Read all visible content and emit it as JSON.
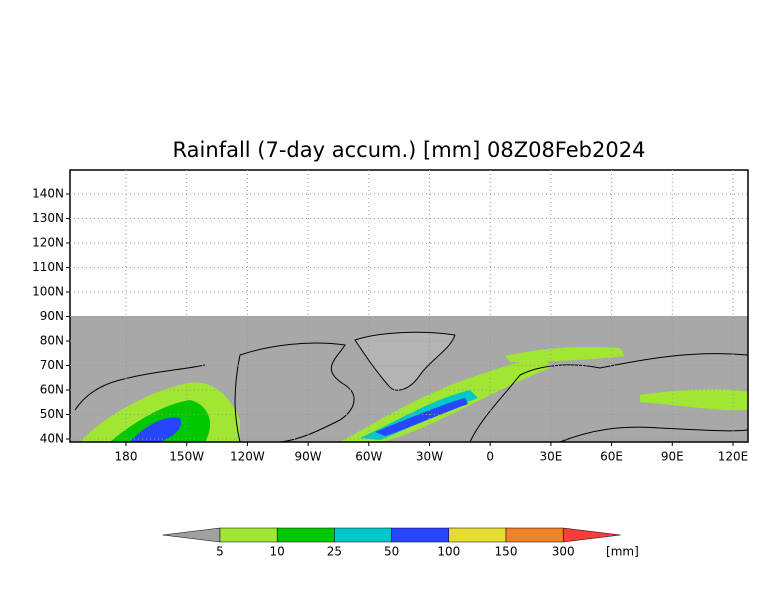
{
  "title": "Rainfall (7-day accum.) [mm] 08Z08Feb2024",
  "map": {
    "lat_labels": [
      "140N",
      "130N",
      "120N",
      "110N",
      "100N",
      "90N",
      "80N",
      "70N",
      "60N",
      "50N",
      "40N"
    ],
    "lon_labels": [
      "180",
      "150W",
      "120W",
      "90W",
      "60W",
      "30W",
      "0",
      "30E",
      "60E",
      "90E",
      "120E"
    ],
    "grid": true
  },
  "colorbar": {
    "levels": [
      5,
      10,
      25,
      50,
      100,
      150,
      300
    ],
    "unit": "[mm]",
    "colors": [
      "#a0a0a0",
      "#a0e632",
      "#00c800",
      "#00c8c8",
      "#2846ff",
      "#e6dc32",
      "#f08228",
      "#fa3c3c"
    ]
  }
}
